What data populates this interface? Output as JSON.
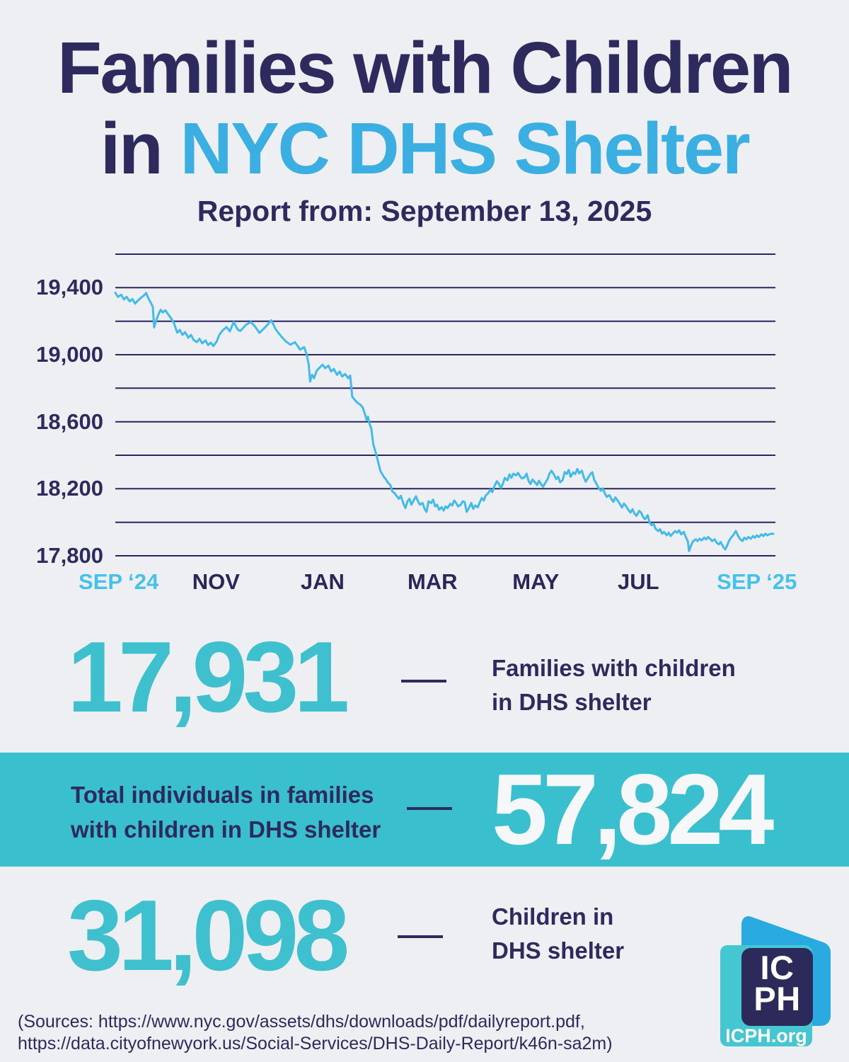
{
  "page": {
    "title_line1": "Families with Children",
    "title_line2_prefix": "in",
    "title_line2_highlight": "NYC DHS Shelter",
    "subtitle": "Report from: September 13, 2025"
  },
  "colors": {
    "background": "#EDEFF3",
    "navy": "#2D2A5E",
    "gridline_navy": "#2B2660",
    "title_blue": "#3BAEE2",
    "line_blue": "#41BAEC",
    "axis_highlight_blue": "#45C1EE",
    "teal": "#3FC0CE",
    "band_teal": "#3ABFCE",
    "white_number": "#F5F7F9"
  },
  "chart_data": {
    "type": "line",
    "grid": true,
    "legend": false,
    "x_axis": {
      "labels": [
        {
          "text": "SEP ‘24",
          "pos": 0.005,
          "highlight": true
        },
        {
          "text": "NOV",
          "pos": 0.153,
          "highlight": false
        },
        {
          "text": "JAN",
          "pos": 0.315,
          "highlight": false
        },
        {
          "text": "MAR",
          "pos": 0.482,
          "highlight": false
        },
        {
          "text": "MAY",
          "pos": 0.639,
          "highlight": false
        },
        {
          "text": "JUL",
          "pos": 0.795,
          "highlight": false
        },
        {
          "text": "SEP ‘25",
          "pos": 0.975,
          "highlight": true
        }
      ]
    },
    "y_axis": {
      "min": 17800,
      "max": 19600,
      "gridline_step": 200,
      "labeled_ticks": [
        {
          "value": 19400,
          "label": "19,400"
        },
        {
          "value": 19000,
          "label": "19,000"
        },
        {
          "value": 18600,
          "label": "18,600"
        },
        {
          "value": 18200,
          "label": "18,200"
        },
        {
          "value": 17800,
          "label": "17,800"
        }
      ]
    },
    "series": [
      {
        "name": "Families with children in DHS shelter",
        "color": "#41BAEC",
        "points": [
          [
            0.0,
            19370
          ],
          [
            0.004,
            19345
          ],
          [
            0.009,
            19358
          ],
          [
            0.013,
            19330
          ],
          [
            0.017,
            19345
          ],
          [
            0.022,
            19318
          ],
          [
            0.026,
            19332
          ],
          [
            0.03,
            19305
          ],
          [
            0.034,
            19322
          ],
          [
            0.039,
            19340
          ],
          [
            0.043,
            19352
          ],
          [
            0.047,
            19368
          ],
          [
            0.051,
            19330
          ],
          [
            0.054,
            19310
          ],
          [
            0.057,
            19285
          ],
          [
            0.059,
            19163
          ],
          [
            0.062,
            19205
          ],
          [
            0.066,
            19245
          ],
          [
            0.069,
            19268
          ],
          [
            0.072,
            19252
          ],
          [
            0.076,
            19265
          ],
          [
            0.081,
            19238
          ],
          [
            0.085,
            19215
          ],
          [
            0.089,
            19190
          ],
          [
            0.094,
            19132
          ],
          [
            0.098,
            19148
          ],
          [
            0.102,
            19118
          ],
          [
            0.106,
            19135
          ],
          [
            0.111,
            19102
          ],
          [
            0.115,
            19118
          ],
          [
            0.119,
            19088
          ],
          [
            0.124,
            19075
          ],
          [
            0.128,
            19095
          ],
          [
            0.132,
            19068
          ],
          [
            0.137,
            19085
          ],
          [
            0.141,
            19058
          ],
          [
            0.145,
            19072
          ],
          [
            0.149,
            19052
          ],
          [
            0.154,
            19078
          ],
          [
            0.158,
            19118
          ],
          [
            0.163,
            19145
          ],
          [
            0.169,
            19165
          ],
          [
            0.174,
            19140
          ],
          [
            0.18,
            19195
          ],
          [
            0.186,
            19150
          ],
          [
            0.19,
            19142
          ],
          [
            0.199,
            19180
          ],
          [
            0.206,
            19195
          ],
          [
            0.212,
            19170
          ],
          [
            0.219,
            19130
          ],
          [
            0.228,
            19165
          ],
          [
            0.237,
            19205
          ],
          [
            0.244,
            19150
          ],
          [
            0.252,
            19110
          ],
          [
            0.259,
            19080
          ],
          [
            0.266,
            19060
          ],
          [
            0.273,
            19075
          ],
          [
            0.281,
            19030
          ],
          [
            0.287,
            19045
          ],
          [
            0.291,
            19000
          ],
          [
            0.294,
            18940
          ],
          [
            0.296,
            18840
          ],
          [
            0.299,
            18880
          ],
          [
            0.302,
            18860
          ],
          [
            0.306,
            18905
          ],
          [
            0.311,
            18925
          ],
          [
            0.315,
            18940
          ],
          [
            0.319,
            18920
          ],
          [
            0.324,
            18935
          ],
          [
            0.328,
            18900
          ],
          [
            0.332,
            18915
          ],
          [
            0.337,
            18880
          ],
          [
            0.341,
            18900
          ],
          [
            0.345,
            18870
          ],
          [
            0.349,
            18885
          ],
          [
            0.354,
            18860
          ],
          [
            0.357,
            18875
          ],
          [
            0.36,
            18750
          ],
          [
            0.365,
            18725
          ],
          [
            0.369,
            18710
          ],
          [
            0.373,
            18700
          ],
          [
            0.376,
            18685
          ],
          [
            0.379,
            18650
          ],
          [
            0.382,
            18610
          ],
          [
            0.384,
            18630
          ],
          [
            0.386,
            18590
          ],
          [
            0.389,
            18560
          ],
          [
            0.392,
            18465
          ],
          [
            0.397,
            18400
          ],
          [
            0.4,
            18350
          ],
          [
            0.403,
            18305
          ],
          [
            0.408,
            18272
          ],
          [
            0.411,
            18258
          ],
          [
            0.414,
            18238
          ],
          [
            0.418,
            18222
          ],
          [
            0.421,
            18185
          ],
          [
            0.425,
            18170
          ],
          [
            0.428,
            18155
          ],
          [
            0.431,
            18140
          ],
          [
            0.434,
            18158
          ],
          [
            0.438,
            18110
          ],
          [
            0.441,
            18085
          ],
          [
            0.444,
            18125
          ],
          [
            0.447,
            18140
          ],
          [
            0.45,
            18105
          ],
          [
            0.454,
            18135
          ],
          [
            0.457,
            18155
          ],
          [
            0.46,
            18125
          ],
          [
            0.463,
            18105
          ],
          [
            0.467,
            18115
          ],
          [
            0.47,
            18080
          ],
          [
            0.473,
            18062
          ],
          [
            0.476,
            18125
          ],
          [
            0.48,
            18115
          ],
          [
            0.483,
            18135
          ],
          [
            0.486,
            18095
          ],
          [
            0.489,
            18105
          ],
          [
            0.492,
            18075
          ],
          [
            0.496,
            18090
          ],
          [
            0.499,
            18070
          ],
          [
            0.502,
            18095
          ],
          [
            0.505,
            18085
          ],
          [
            0.509,
            18110
          ],
          [
            0.512,
            18100
          ],
          [
            0.515,
            18130
          ],
          [
            0.518,
            18115
          ],
          [
            0.521,
            18095
          ],
          [
            0.525,
            18105
          ],
          [
            0.528,
            18125
          ],
          [
            0.531,
            18120
          ],
          [
            0.534,
            18062
          ],
          [
            0.538,
            18090
          ],
          [
            0.541,
            18115
          ],
          [
            0.544,
            18080
          ],
          [
            0.547,
            18100
          ],
          [
            0.551,
            18090
          ],
          [
            0.554,
            18120
          ],
          [
            0.557,
            18145
          ],
          [
            0.56,
            18130
          ],
          [
            0.563,
            18160
          ],
          [
            0.567,
            18175
          ],
          [
            0.57,
            18195
          ],
          [
            0.573,
            18180
          ],
          [
            0.576,
            18215
          ],
          [
            0.58,
            18245
          ],
          [
            0.583,
            18228
          ],
          [
            0.586,
            18205
          ],
          [
            0.589,
            18230
          ],
          [
            0.592,
            18265
          ],
          [
            0.596,
            18250
          ],
          [
            0.599,
            18285
          ],
          [
            0.602,
            18265
          ],
          [
            0.605,
            18290
          ],
          [
            0.609,
            18280
          ],
          [
            0.612,
            18295
          ],
          [
            0.615,
            18275
          ],
          [
            0.618,
            18262
          ],
          [
            0.622,
            18268
          ],
          [
            0.625,
            18290
          ],
          [
            0.628,
            18248
          ],
          [
            0.631,
            18228
          ],
          [
            0.634,
            18255
          ],
          [
            0.638,
            18238
          ],
          [
            0.641,
            18222
          ],
          [
            0.644,
            18248
          ],
          [
            0.647,
            18228
          ],
          [
            0.65,
            18212
          ],
          [
            0.654,
            18238
          ],
          [
            0.657,
            18258
          ],
          [
            0.66,
            18292
          ],
          [
            0.663,
            18308
          ],
          [
            0.667,
            18282
          ],
          [
            0.67,
            18258
          ],
          [
            0.673,
            18272
          ],
          [
            0.676,
            18238
          ],
          [
            0.68,
            18252
          ],
          [
            0.683,
            18300
          ],
          [
            0.686,
            18288
          ],
          [
            0.689,
            18312
          ],
          [
            0.692,
            18272
          ],
          [
            0.696,
            18298
          ],
          [
            0.699,
            18288
          ],
          [
            0.702,
            18318
          ],
          [
            0.705,
            18292
          ],
          [
            0.709,
            18308
          ],
          [
            0.712,
            18268
          ],
          [
            0.715,
            18242
          ],
          [
            0.718,
            18262
          ],
          [
            0.722,
            18288
          ],
          [
            0.725,
            18298
          ],
          [
            0.728,
            18252
          ],
          [
            0.731,
            18232
          ],
          [
            0.734,
            18208
          ],
          [
            0.738,
            18188
          ],
          [
            0.741,
            18202
          ],
          [
            0.744,
            18172
          ],
          [
            0.747,
            18152
          ],
          [
            0.751,
            18162
          ],
          [
            0.754,
            18138
          ],
          [
            0.757,
            18122
          ],
          [
            0.76,
            18148
          ],
          [
            0.763,
            18132
          ],
          [
            0.767,
            18108
          ],
          [
            0.77,
            18088
          ],
          [
            0.773,
            18112
          ],
          [
            0.776,
            18098
          ],
          [
            0.78,
            18072
          ],
          [
            0.783,
            18058
          ],
          [
            0.786,
            18078
          ],
          [
            0.789,
            18052
          ],
          [
            0.792,
            18038
          ],
          [
            0.796,
            18068
          ],
          [
            0.799,
            18058
          ],
          [
            0.802,
            18032
          ],
          [
            0.805,
            18018
          ],
          [
            0.809,
            18042
          ],
          [
            0.812,
            17998
          ],
          [
            0.815,
            17982
          ],
          [
            0.818,
            17992
          ],
          [
            0.821,
            17962
          ],
          [
            0.825,
            17948
          ],
          [
            0.828,
            17958
          ],
          [
            0.831,
            17932
          ],
          [
            0.834,
            17942
          ],
          [
            0.838,
            17922
          ],
          [
            0.841,
            17938
          ],
          [
            0.844,
            17918
          ],
          [
            0.847,
            17932
          ],
          [
            0.851,
            17948
          ],
          [
            0.854,
            17938
          ],
          [
            0.857,
            17952
          ],
          [
            0.86,
            17928
          ],
          [
            0.864,
            17942
          ],
          [
            0.867,
            17912
          ],
          [
            0.87,
            17888
          ],
          [
            0.872,
            17828
          ],
          [
            0.875,
            17862
          ],
          [
            0.878,
            17886
          ],
          [
            0.882,
            17898
          ],
          [
            0.885,
            17888
          ],
          [
            0.888,
            17902
          ],
          [
            0.891,
            17892
          ],
          [
            0.895,
            17908
          ],
          [
            0.898,
            17898
          ],
          [
            0.901,
            17912
          ],
          [
            0.904,
            17902
          ],
          [
            0.907,
            17888
          ],
          [
            0.911,
            17898
          ],
          [
            0.914,
            17878
          ],
          [
            0.917,
            17868
          ],
          [
            0.92,
            17882
          ],
          [
            0.924,
            17852
          ],
          [
            0.927,
            17838
          ],
          [
            0.93,
            17862
          ],
          [
            0.933,
            17892
          ],
          [
            0.936,
            17908
          ],
          [
            0.94,
            17928
          ],
          [
            0.943,
            17948
          ],
          [
            0.946,
            17922
          ],
          [
            0.949,
            17902
          ],
          [
            0.953,
            17888
          ],
          [
            0.956,
            17908
          ],
          [
            0.959,
            17898
          ],
          [
            0.962,
            17912
          ],
          [
            0.966,
            17902
          ],
          [
            0.969,
            17918
          ],
          [
            0.972,
            17908
          ],
          [
            0.975,
            17922
          ],
          [
            0.978,
            17912
          ],
          [
            0.982,
            17928
          ],
          [
            0.985,
            17918
          ],
          [
            0.988,
            17932
          ],
          [
            0.991,
            17922
          ],
          [
            0.994,
            17928
          ],
          [
            0.998,
            17932
          ],
          [
            1.0,
            17931
          ]
        ]
      }
    ]
  },
  "stats": [
    {
      "value": "17,931",
      "label_line1": "Families with children",
      "label_line2": "in DHS shelter"
    },
    {
      "value": "57,824",
      "label_line1": "Total individuals in families",
      "label_line2": "with children in DHS shelter"
    },
    {
      "value": "31,098",
      "label_line1": "Children in",
      "label_line2": "DHS shelter"
    }
  ],
  "sources": {
    "line1": "(Sources: https://www.nyc.gov/assets/dhs/downloads/pdf/dailyreport.pdf,",
    "line2": "https://data.cityofnewyork.us/Social-Services/DHS-Daily-Report/k46n-sa2m)"
  },
  "logo": {
    "monogram_line1": "IC",
    "monogram_line2": "PH",
    "caption": "ICPH.org"
  }
}
